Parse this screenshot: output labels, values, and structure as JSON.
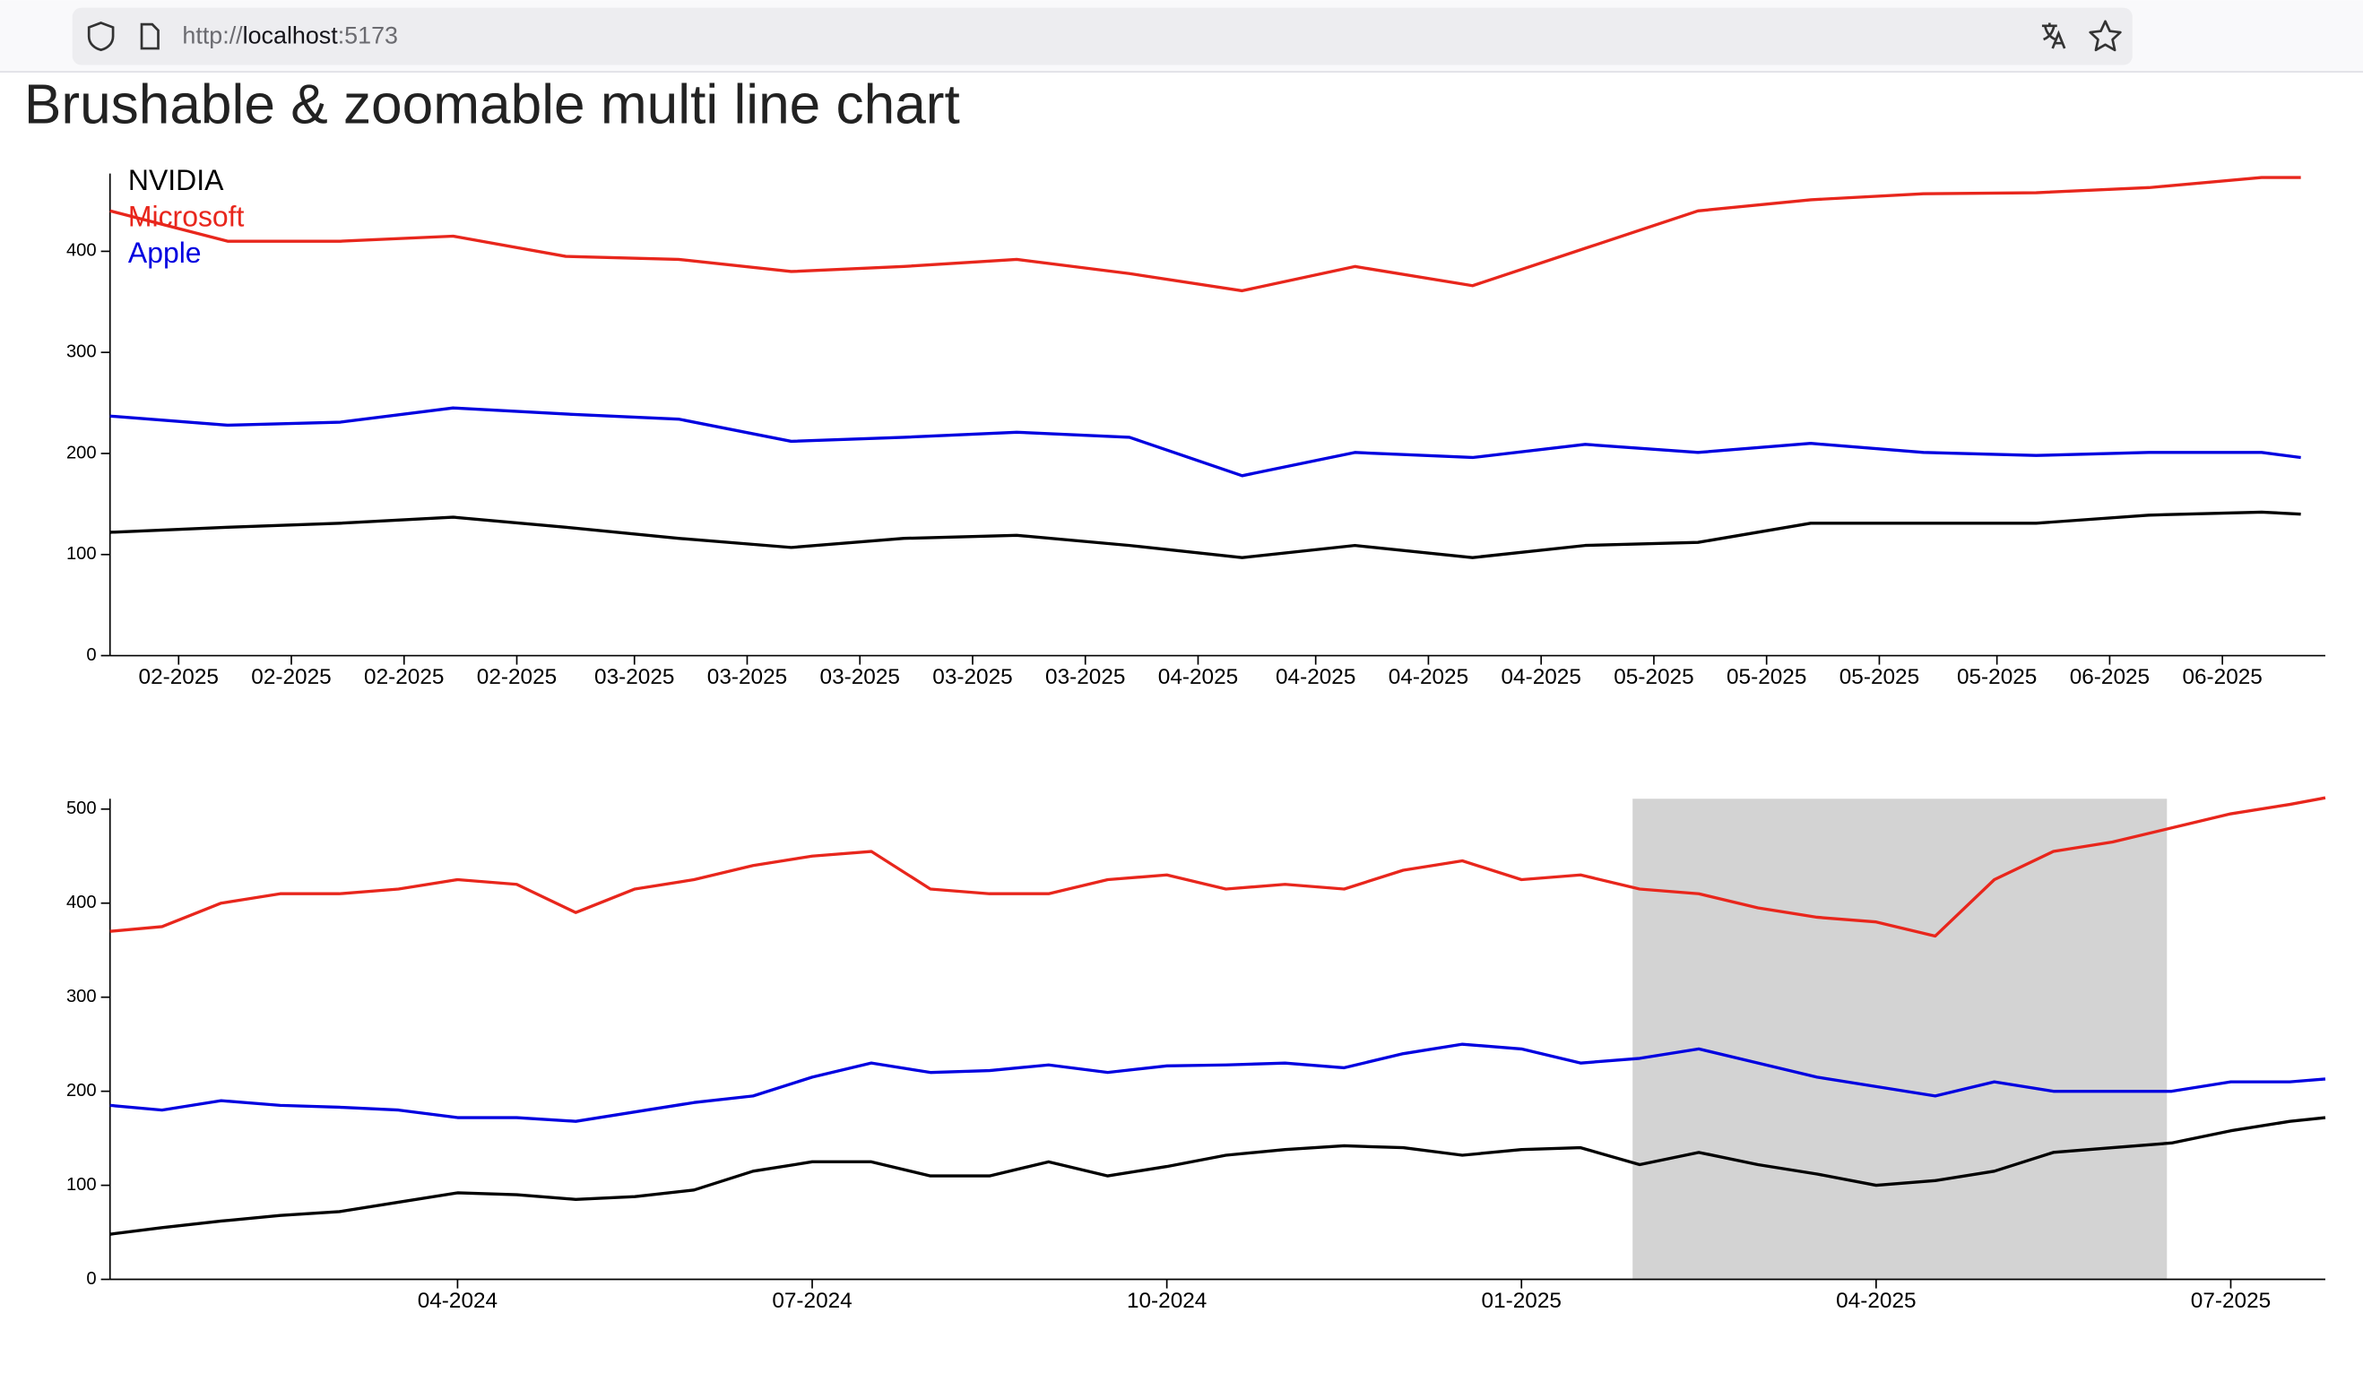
{
  "browser": {
    "url": {
      "scheme": "http://",
      "host": "localhost",
      "port": ":5173"
    }
  },
  "heading": "Brushable & zoomable multi line chart",
  "chart_data": [
    {
      "type": "line",
      "x": [
        12.94,
        13.18,
        13.41,
        13.64,
        13.87,
        14.1,
        14.33,
        14.56,
        14.79,
        15.02,
        15.25,
        15.48,
        15.72,
        15.95,
        16.18,
        16.41,
        16.64,
        16.87,
        17.1,
        17.33,
        17.41
      ],
      "series": [
        {
          "name": "NVIDIA",
          "color": "#000000",
          "values": [
            122,
            127,
            131,
            137,
            127,
            116,
            107,
            116,
            119,
            109,
            97,
            109,
            97,
            109,
            112,
            131,
            131,
            131,
            139,
            142,
            140
          ]
        },
        {
          "name": "Microsoft",
          "color": "#e8261c",
          "values": [
            440,
            410,
            410,
            415,
            395,
            392,
            380,
            385,
            392,
            378,
            361,
            385,
            366,
            403,
            440,
            451,
            457,
            458,
            463,
            473,
            473
          ]
        },
        {
          "name": "Apple",
          "color": "#0000e0",
          "values": [
            237,
            228,
            231,
            245,
            239,
            234,
            212,
            216,
            221,
            216,
            178,
            201,
            196,
            209,
            201,
            210,
            201,
            198,
            201,
            201,
            196
          ]
        }
      ],
      "xlim": [
        12.94,
        17.46
      ],
      "xticks": [
        {
          "value": 13.08,
          "label": "02-2025"
        },
        {
          "value": 13.31,
          "label": "02-2025"
        },
        {
          "value": 13.54,
          "label": "02-2025"
        },
        {
          "value": 13.77,
          "label": "02-2025"
        },
        {
          "value": 14.01,
          "label": "03-2025"
        },
        {
          "value": 14.24,
          "label": "03-2025"
        },
        {
          "value": 14.47,
          "label": "03-2025"
        },
        {
          "value": 14.7,
          "label": "03-2025"
        },
        {
          "value": 14.93,
          "label": "03-2025"
        },
        {
          "value": 15.16,
          "label": "04-2025"
        },
        {
          "value": 15.4,
          "label": "04-2025"
        },
        {
          "value": 15.63,
          "label": "04-2025"
        },
        {
          "value": 15.86,
          "label": "04-2025"
        },
        {
          "value": 16.09,
          "label": "05-2025"
        },
        {
          "value": 16.32,
          "label": "05-2025"
        },
        {
          "value": 16.55,
          "label": "05-2025"
        },
        {
          "value": 16.79,
          "label": "05-2025"
        },
        {
          "value": 17.02,
          "label": "06-2025"
        },
        {
          "value": 17.25,
          "label": "06-2025"
        }
      ],
      "ylim": [
        0,
        477
      ],
      "yticks": [
        0,
        100,
        200,
        300,
        400
      ],
      "legend": "top-left"
    },
    {
      "type": "line",
      "x": [
        0.06,
        0.5,
        1,
        1.5,
        2,
        2.5,
        3,
        3.5,
        4,
        4.5,
        5,
        5.5,
        6,
        6.5,
        7,
        7.5,
        8,
        8.5,
        9,
        9.5,
        10,
        10.5,
        11,
        11.5,
        12,
        12.5,
        13,
        13.5,
        14,
        14.5,
        15,
        15.5,
        16,
        16.5,
        17,
        17.5,
        18,
        18.5,
        18.8
      ],
      "series": [
        {
          "color": "#000000",
          "values": [
            48,
            55,
            62,
            68,
            72,
            82,
            92,
            90,
            85,
            88,
            95,
            115,
            125,
            125,
            110,
            110,
            125,
            110,
            120,
            132,
            138,
            142,
            140,
            132,
            138,
            140,
            122,
            135,
            122,
            112,
            100,
            105,
            115,
            135,
            140,
            145,
            158,
            168,
            172
          ]
        },
        {
          "color": "#e8261c",
          "values": [
            370,
            375,
            400,
            410,
            410,
            415,
            425,
            420,
            390,
            415,
            425,
            440,
            450,
            455,
            415,
            410,
            410,
            425,
            430,
            415,
            420,
            415,
            435,
            445,
            425,
            430,
            415,
            410,
            395,
            385,
            380,
            365,
            425,
            455,
            465,
            480,
            495,
            505,
            512
          ]
        },
        {
          "color": "#0000e0",
          "values": [
            185,
            180,
            190,
            185,
            183,
            180,
            172,
            172,
            168,
            178,
            188,
            195,
            215,
            230,
            220,
            222,
            228,
            220,
            227,
            228,
            230,
            225,
            240,
            250,
            245,
            230,
            235,
            245,
            230,
            215,
            205,
            195,
            210,
            200,
            200,
            200,
            210,
            210,
            213
          ]
        }
      ],
      "xlim": [
        0.06,
        18.8
      ],
      "xticks": [
        {
          "value": 3,
          "label": "04-2024"
        },
        {
          "value": 6,
          "label": "07-2024"
        },
        {
          "value": 9,
          "label": "10-2024"
        },
        {
          "value": 12,
          "label": "01-2025"
        },
        {
          "value": 15,
          "label": "04-2025"
        },
        {
          "value": 18,
          "label": "07-2025"
        }
      ],
      "ylim": [
        0,
        511
      ],
      "yticks": [
        0,
        100,
        200,
        300,
        400,
        500
      ],
      "brush": [
        12.94,
        17.46
      ],
      "brush_color": "#d3d3d3"
    }
  ]
}
